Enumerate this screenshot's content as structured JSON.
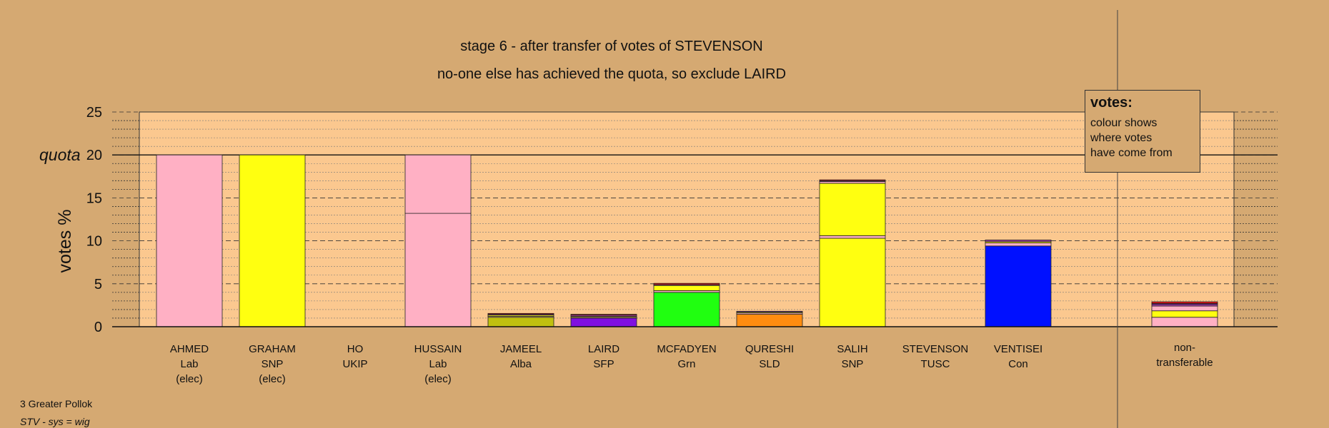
{
  "title": "stage 6 - after transfer of votes of STEVENSON",
  "subtitle": "no-one else has achieved the quota, so exclude LAIRD",
  "legend": {
    "title": "votes:",
    "text": "colour shows where votes have come from",
    "lines": [
      "colour shows",
      "where votes",
      "have come from"
    ]
  },
  "footer": {
    "ward": "3 Greater Pollok",
    "system": "STV - sys = wig"
  },
  "colors": {
    "background": "#d5a972",
    "plot_area": "#fbc88f",
    "Lab": "#ffb0c4",
    "SNP": "#ffff10",
    "UKIP": "#a040a0",
    "Alba": "#c0c010",
    "SFP": "#8010e0",
    "Grn": "#20ff10",
    "SLD": "#ff8c10",
    "TUSC": "#e01010",
    "Con": "#0010ff"
  },
  "chart_data": {
    "type": "bar",
    "stacked": true,
    "ylabel": "votes %",
    "ylim": [
      0,
      25
    ],
    "yticks": [
      0,
      5,
      10,
      15,
      20,
      25
    ],
    "quota": 20,
    "quota_label": "quota",
    "grid": true,
    "categories": [
      {
        "name": "AHMED",
        "party": "Lab",
        "note": "(elec)",
        "segments": [
          {
            "from": "Lab",
            "value": 20.0
          }
        ]
      },
      {
        "name": "GRAHAM",
        "party": "SNP",
        "note": "(elec)",
        "segments": [
          {
            "from": "SNP",
            "value": 20.0
          }
        ]
      },
      {
        "name": "HO",
        "party": "UKIP",
        "note": "",
        "segments": []
      },
      {
        "name": "HUSSAIN",
        "party": "Lab",
        "note": "(elec)",
        "segments": [
          {
            "from": "Lab",
            "value": 13.2
          },
          {
            "from": "Lab",
            "value": 6.8
          }
        ]
      },
      {
        "name": "JAMEEL",
        "party": "Alba",
        "note": "",
        "segments": [
          {
            "from": "Alba",
            "value": 1.1
          },
          {
            "from": "Lab",
            "value": 0.1
          },
          {
            "from": "SNP",
            "value": 0.15
          },
          {
            "from": "UKIP",
            "value": 0.1
          },
          {
            "from": "TUSC",
            "value": 0.1
          }
        ]
      },
      {
        "name": "LAIRD",
        "party": "SFP",
        "note": "",
        "segments": [
          {
            "from": "SFP",
            "value": 1.0
          },
          {
            "from": "Lab",
            "value": 0.1
          },
          {
            "from": "SNP",
            "value": 0.1
          },
          {
            "from": "UKIP",
            "value": 0.15
          },
          {
            "from": "TUSC",
            "value": 0.1
          }
        ]
      },
      {
        "name": "MCFADYEN",
        "party": "Grn",
        "note": "",
        "segments": [
          {
            "from": "Grn",
            "value": 4.0
          },
          {
            "from": "Lab",
            "value": 0.2
          },
          {
            "from": "SNP",
            "value": 0.6
          },
          {
            "from": "UKIP",
            "value": 0.1
          },
          {
            "from": "TUSC",
            "value": 0.15
          }
        ]
      },
      {
        "name": "QURESHI",
        "party": "SLD",
        "note": "",
        "segments": [
          {
            "from": "SLD",
            "value": 1.45
          },
          {
            "from": "Lab",
            "value": 0.15
          },
          {
            "from": "SNP",
            "value": 0.1
          },
          {
            "from": "UKIP",
            "value": 0.1
          }
        ]
      },
      {
        "name": "SALIH",
        "party": "SNP",
        "note": "",
        "segments": [
          {
            "from": "SNP",
            "value": 10.3
          },
          {
            "from": "Lab",
            "value": 0.3
          },
          {
            "from": "SNP",
            "value": 6.1
          },
          {
            "from": "Lab",
            "value": 0.2
          },
          {
            "from": "UKIP",
            "value": 0.1
          },
          {
            "from": "TUSC",
            "value": 0.1
          }
        ]
      },
      {
        "name": "STEVENSON",
        "party": "TUSC",
        "note": "",
        "segments": []
      },
      {
        "name": "VENTISEI",
        "party": "Con",
        "note": "",
        "segments": [
          {
            "from": "Con",
            "value": 9.4
          },
          {
            "from": "Lab",
            "value": 0.35
          },
          {
            "from": "SNP",
            "value": 0.15
          },
          {
            "from": "UKIP",
            "value": 0.2
          }
        ]
      }
    ],
    "non_transferable": {
      "label_lines": [
        "non-",
        "transferable"
      ],
      "segments": [
        {
          "from": "Lab",
          "value": 1.1
        },
        {
          "from": "SNP",
          "value": 0.75
        },
        {
          "from": "Lab",
          "value": 0.55
        },
        {
          "from": "UKIP",
          "value": 0.2
        },
        {
          "from": "SFP",
          "value": 0.1
        },
        {
          "from": "TUSC",
          "value": 0.2
        }
      ]
    }
  }
}
